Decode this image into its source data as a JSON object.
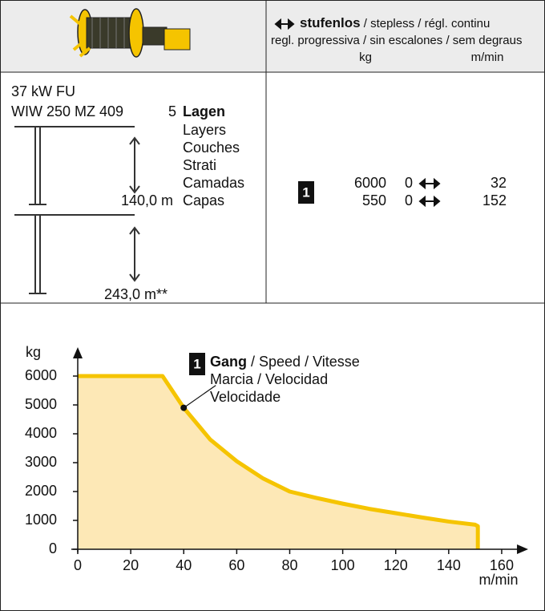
{
  "header": {
    "title_bold": "stufenlos",
    "title_rest": " / stepless / régl. continu",
    "subtitle": "regl. progressiva / sin escalones / sem degraus",
    "unit_load": "kg",
    "unit_speed": "m/min"
  },
  "specs": {
    "power": "37 kW FU",
    "model": "WIW 250 MZ 409",
    "layer_count": 5,
    "layers_bold": "Lagen",
    "layers": [
      "Layers",
      "Couches",
      "Strati",
      "Camadas",
      "Capas"
    ],
    "heights": [
      "140,0 m",
      "243,0 m**"
    ]
  },
  "speed_table": {
    "gear": 1,
    "rows": [
      {
        "load": 6000,
        "min": 0,
        "max": 32
      },
      {
        "load": 550,
        "min": 0,
        "max": 152
      }
    ]
  },
  "chart_data": {
    "type": "area",
    "y_label": "kg",
    "x_label": "m/min",
    "x": [
      0,
      32,
      40,
      50,
      60,
      70,
      80,
      90,
      100,
      110,
      120,
      130,
      140,
      150,
      151,
      151
    ],
    "series": [
      {
        "color": "#f5c400",
        "fill": "#fde8b6",
        "values": [
          6000,
          6000,
          4900,
          3800,
          3050,
          2450,
          2000,
          1780,
          1580,
          1400,
          1250,
          1100,
          960,
          850,
          800,
          0
        ]
      }
    ],
    "xlim": [
      0,
      170
    ],
    "ylim": [
      0,
      7000
    ],
    "xticks": [
      0,
      20,
      40,
      60,
      80,
      100,
      120,
      140,
      160
    ],
    "yticks": [
      0,
      1000,
      2000,
      3000,
      4000,
      5000,
      6000
    ],
    "annotation": {
      "x": 40,
      "y": 4900,
      "badge": 1,
      "bold": "Gang",
      "line1": " / Speed / Vitesse",
      "line2": "Marcia / Velocidad",
      "line3": "Velocidade"
    }
  }
}
